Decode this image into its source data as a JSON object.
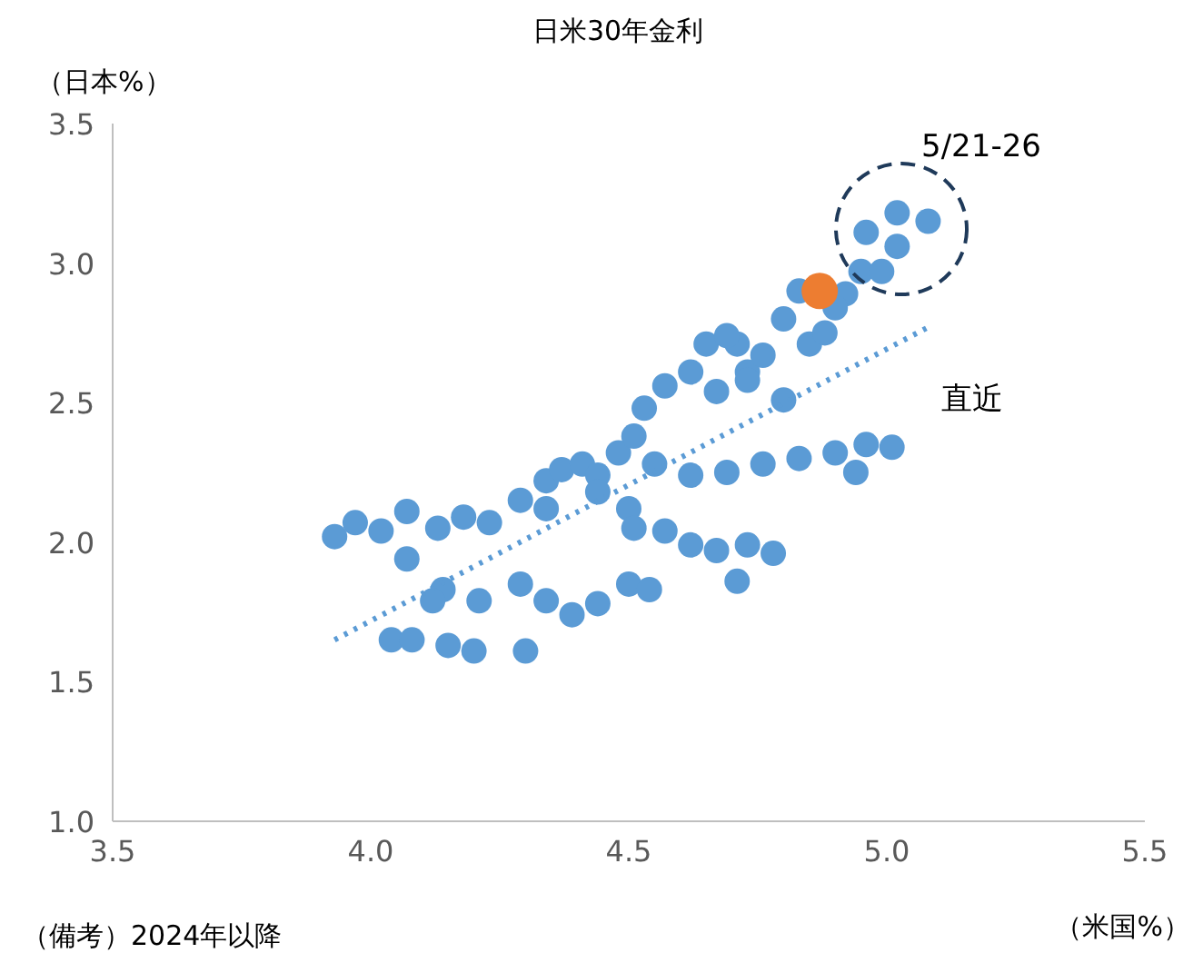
{
  "chart_data": {
    "type": "scatter",
    "title": "日米30年金利",
    "ylabel": "（日本%）",
    "xlabel": "（米国%）",
    "xlim": [
      3.5,
      5.5
    ],
    "xticks": [
      3.5,
      {
        "value": 4,
        "label": "4.0"
      },
      4.5,
      {
        "value": 5,
        "label": "5.0"
      },
      5.5
    ],
    "ylim": [
      1,
      3.5
    ],
    "yticks": [
      {
        "value": 1,
        "label": "1.0"
      },
      1.5,
      {
        "value": 2,
        "label": "2.0"
      },
      2.5,
      {
        "value": 3,
        "label": "3.0"
      },
      3.5
    ],
    "grid": false,
    "series": [
      {
        "marker": "circle",
        "color": "#5b9bd5",
        "x": [
          3.93,
          3.97,
          4.02,
          4.07,
          4.13,
          4.18,
          4.23,
          4.29,
          4.34,
          4.37,
          4.41,
          4.44,
          4.48,
          4.51,
          4.53,
          4.57,
          4.62,
          4.67,
          4.73,
          4.65,
          4.71,
          4.76,
          4.69,
          4.55,
          4.62,
          4.69,
          4.76,
          4.83,
          4.9,
          4.96,
          5.01,
          4.94,
          4.44,
          4.5,
          4.34,
          4.51,
          4.57,
          4.62,
          4.67,
          4.73,
          4.78,
          4.71,
          4.14,
          4.21,
          4.29,
          4.34,
          4.39,
          4.44,
          4.5,
          4.54,
          4.12,
          4.04,
          4.08,
          4.15,
          4.2,
          4.3,
          4.07,
          4.8,
          4.83,
          4.92,
          4.95,
          4.99,
          4.9,
          4.85,
          4.88,
          4.8,
          4.73,
          4.96,
          5.02,
          5.02,
          5.08
        ],
        "values": [
          2.02,
          2.07,
          2.04,
          2.11,
          2.05,
          2.09,
          2.07,
          2.15,
          2.22,
          2.26,
          2.28,
          2.24,
          2.32,
          2.38,
          2.48,
          2.56,
          2.61,
          2.54,
          2.61,
          2.71,
          2.71,
          2.67,
          2.74,
          2.28,
          2.24,
          2.25,
          2.28,
          2.3,
          2.32,
          2.35,
          2.34,
          2.25,
          2.18,
          2.12,
          2.12,
          2.05,
          2.04,
          1.99,
          1.97,
          1.99,
          1.96,
          1.86,
          1.83,
          1.79,
          1.85,
          1.79,
          1.74,
          1.78,
          1.85,
          1.83,
          1.79,
          1.65,
          1.65,
          1.63,
          1.61,
          1.61,
          1.94,
          2.8,
          2.9,
          2.89,
          2.97,
          2.97,
          2.84,
          2.71,
          2.75,
          2.51,
          2.58,
          3.11,
          3.18,
          3.06,
          3.15
        ]
      },
      {
        "marker": "circle",
        "color": "#ed7d31",
        "x": [
          4.87
        ],
        "values": [
          2.9
        ]
      },
      {
        "type": "line",
        "line_style": "dotted",
        "color": "#5b9bd5",
        "x": [
          3.93,
          5.08
        ],
        "values": [
          1.65,
          2.77
        ]
      }
    ],
    "annotations": [
      "5/21-26",
      "直近",
      "（備考）2024年以降"
    ]
  }
}
